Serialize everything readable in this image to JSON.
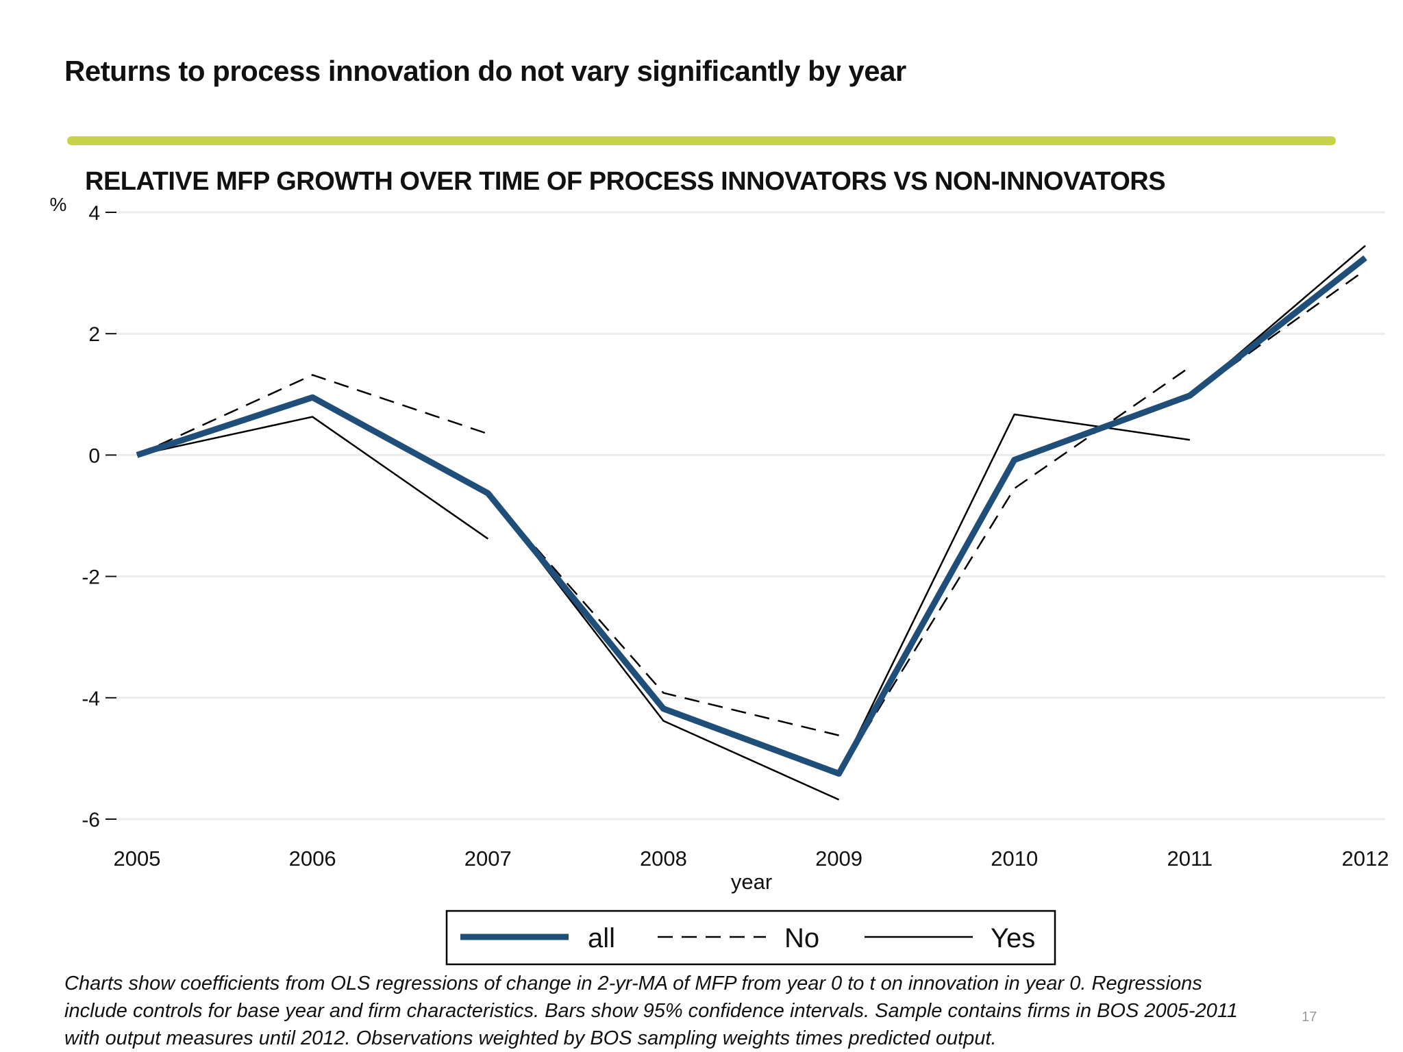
{
  "slide": {
    "title": "Returns to process innovation do not vary significantly by year",
    "accent_color": "#c9d34a",
    "page_number": "17",
    "footnote": [
      "Charts show coefficients from OLS regressions of change in 2-yr-MA of MFP from year 0 to t on innovation in year 0. Regressions",
      "include controls for base year and firm characteristics. Bars show 95% confidence intervals. Sample contains firms in BOS 2005-2011",
      "with output measures until 2012. Observations weighted by BOS sampling weights times predicted output."
    ]
  },
  "chart_data": {
    "type": "line",
    "title": "RELATIVE MFP GROWTH OVER TIME OF PROCESS INNOVATORS VS NON-INNOVATORS",
    "xlabel": "year",
    "ylabel": "%",
    "x": [
      2005,
      2006,
      2007,
      2008,
      2009,
      2010,
      2011,
      2012
    ],
    "xlim": [
      2005,
      2012
    ],
    "ylim": [
      -6,
      4
    ],
    "yticks": [
      4,
      2,
      0,
      -2,
      -4,
      -6
    ],
    "xticks": [
      "2005",
      "2006",
      "2007",
      "2008",
      "2009",
      "2010",
      "2011",
      "2012"
    ],
    "grid": true,
    "legend_position": "bottom",
    "series": [
      {
        "name": "all",
        "style": "solid-thick",
        "color": "#1f4e79",
        "segments": [
          [
            [
              2005,
              0
            ],
            [
              2006,
              0.95
            ],
            [
              2007,
              -0.63
            ],
            [
              2008,
              -4.18
            ],
            [
              2009,
              -5.25
            ],
            [
              2010,
              -0.08
            ],
            [
              2011,
              0.98
            ],
            [
              2012,
              3.25
            ]
          ]
        ]
      },
      {
        "name": "No",
        "style": "dashed",
        "color": "#000000",
        "segments": [
          [
            [
              2005,
              0
            ],
            [
              2006,
              1.32
            ],
            [
              2007,
              0.35
            ]
          ],
          [
            [
              2007,
              -0.63
            ],
            [
              2008,
              -3.92
            ],
            [
              2009,
              -4.62
            ]
          ],
          [
            [
              2009,
              -5.25
            ],
            [
              2010,
              -0.55
            ],
            [
              2011,
              1.45
            ]
          ],
          [
            [
              2011,
              0.98
            ],
            [
              2012,
              3.05
            ]
          ]
        ]
      },
      {
        "name": "Yes",
        "style": "solid-thin",
        "color": "#000000",
        "segments": [
          [
            [
              2005,
              0
            ],
            [
              2006,
              0.63
            ],
            [
              2007,
              -1.38
            ]
          ],
          [
            [
              2007,
              -0.63
            ],
            [
              2008,
              -4.38
            ],
            [
              2009,
              -5.68
            ]
          ],
          [
            [
              2009,
              -5.25
            ],
            [
              2010,
              0.67
            ],
            [
              2011,
              0.25
            ]
          ],
          [
            [
              2011,
              0.98
            ],
            [
              2012,
              3.45
            ]
          ]
        ]
      }
    ]
  }
}
